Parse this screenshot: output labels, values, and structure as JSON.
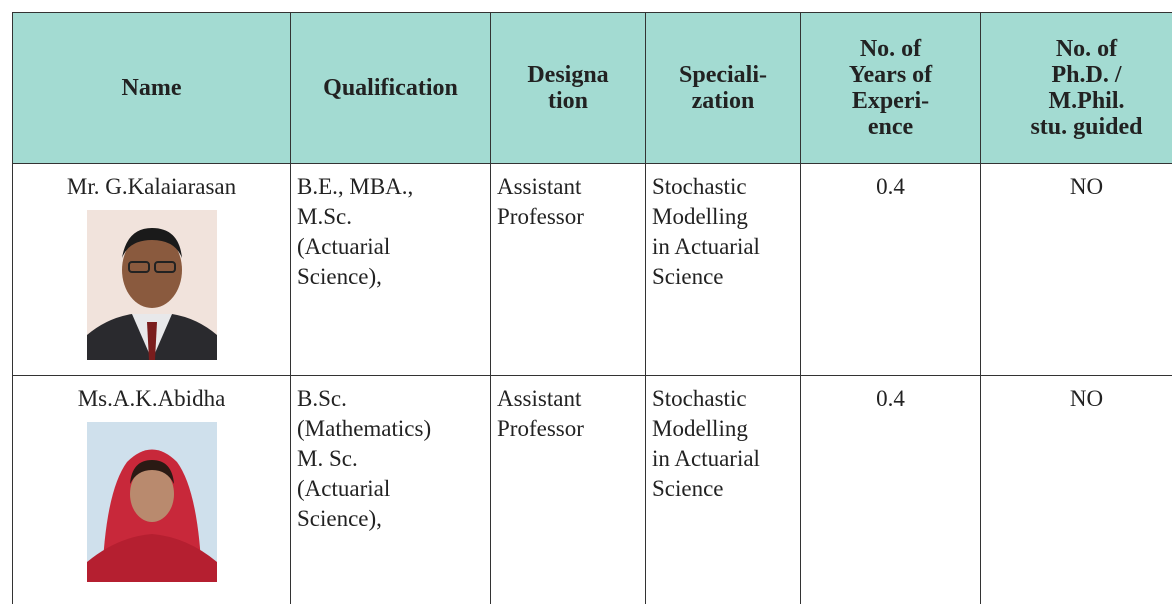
{
  "table": {
    "headers": [
      [
        "Name"
      ],
      [
        "Qualification"
      ],
      [
        "Designa",
        "tion"
      ],
      [
        "Speciali-",
        "zation"
      ],
      [
        "No. of",
        "Years of",
        "Experi-",
        "ence"
      ],
      [
        "No. of",
        "Ph.D. /",
        "M.Phil.",
        "stu. guided"
      ]
    ],
    "rows": [
      [
        [
          "Mr. G.Kalaiarasan"
        ],
        [
          "B.E., MBA.,",
          "M.Sc.",
          "(Actuarial",
          "Science),"
        ],
        [
          "Assistant",
          "Professor"
        ],
        [
          "Stochastic",
          "Modelling",
          "in Actuarial",
          "Science"
        ],
        [
          "0.4"
        ],
        [
          "NO"
        ]
      ],
      [
        [
          "Ms.A.K.Abidha"
        ],
        [
          "B.Sc.",
          "(Mathematics)",
          "M. Sc.",
          "(Actuarial",
          "Science),"
        ],
        [
          "Assistant",
          "Professor"
        ],
        [
          "Stochastic",
          "Modelling",
          "in Actuarial",
          "Science"
        ],
        [
          "0.4"
        ],
        [
          "NO"
        ]
      ]
    ]
  }
}
